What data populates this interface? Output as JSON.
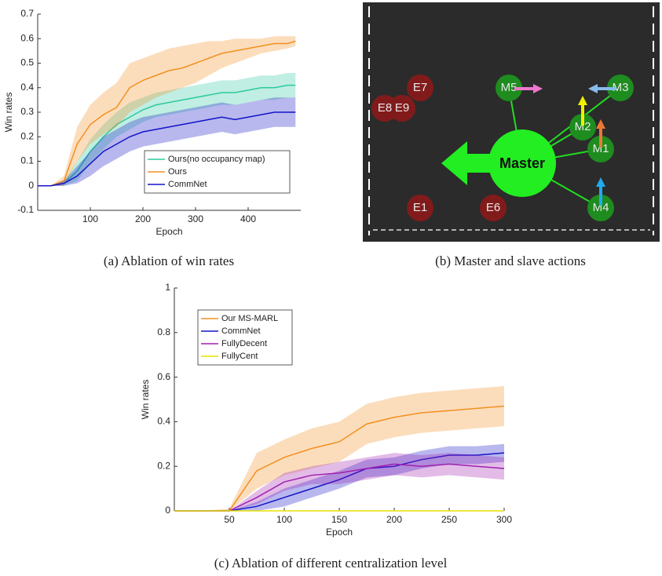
{
  "chart_data": [
    {
      "type": "line",
      "caption": "(a) Ablation of win rates",
      "x_label": "Epoch",
      "y_label": "Win rates",
      "x": [
        0,
        25,
        50,
        75,
        100,
        125,
        150,
        175,
        200,
        225,
        250,
        275,
        300,
        325,
        350,
        375,
        400,
        425,
        450,
        475,
        490
      ],
      "xlim": [
        0,
        500
      ],
      "xticks": [
        100,
        200,
        300,
        400
      ],
      "ylim": [
        -0.1,
        0.7
      ],
      "yticks": [
        -0.1,
        0,
        0.1,
        0.2,
        0.3,
        0.4,
        0.5,
        0.6,
        0.7
      ],
      "legend": "lower right",
      "series": [
        {
          "name": "Ours(no occupancy map)",
          "color": "#2ec8a0",
          "values": [
            0,
            0,
            0.01,
            0.06,
            0.14,
            0.2,
            0.25,
            0.28,
            0.31,
            0.33,
            0.34,
            0.35,
            0.36,
            0.37,
            0.38,
            0.38,
            0.39,
            0.4,
            0.4,
            0.41,
            0.41
          ],
          "upper": [
            0,
            0,
            0.02,
            0.1,
            0.19,
            0.25,
            0.3,
            0.34,
            0.36,
            0.38,
            0.39,
            0.4,
            0.41,
            0.42,
            0.43,
            0.43,
            0.44,
            0.45,
            0.45,
            0.46,
            0.46
          ],
          "lower": [
            0,
            0,
            0,
            0.02,
            0.09,
            0.15,
            0.2,
            0.23,
            0.26,
            0.28,
            0.29,
            0.3,
            0.31,
            0.32,
            0.33,
            0.33,
            0.34,
            0.35,
            0.35,
            0.36,
            0.36
          ]
        },
        {
          "name": "Ours",
          "color": "#f39020",
          "values": [
            0,
            0,
            0.02,
            0.17,
            0.25,
            0.29,
            0.32,
            0.4,
            0.43,
            0.45,
            0.47,
            0.48,
            0.5,
            0.52,
            0.54,
            0.55,
            0.56,
            0.57,
            0.58,
            0.58,
            0.59
          ],
          "upper": [
            0,
            0,
            0.04,
            0.24,
            0.33,
            0.38,
            0.42,
            0.5,
            0.52,
            0.54,
            0.56,
            0.57,
            0.58,
            0.59,
            0.59,
            0.6,
            0.6,
            0.6,
            0.61,
            0.61,
            0.61
          ],
          "lower": [
            0,
            0,
            0,
            0.1,
            0.17,
            0.21,
            0.24,
            0.3,
            0.33,
            0.36,
            0.38,
            0.4,
            0.42,
            0.45,
            0.48,
            0.5,
            0.52,
            0.54,
            0.55,
            0.56,
            0.57
          ]
        },
        {
          "name": "CommNet",
          "color": "#1414c8",
          "values": [
            0,
            0,
            0.01,
            0.04,
            0.09,
            0.14,
            0.17,
            0.2,
            0.22,
            0.23,
            0.24,
            0.25,
            0.26,
            0.27,
            0.28,
            0.27,
            0.28,
            0.29,
            0.3,
            0.3,
            0.3
          ],
          "upper": [
            0,
            0,
            0.02,
            0.08,
            0.14,
            0.2,
            0.23,
            0.26,
            0.28,
            0.29,
            0.3,
            0.31,
            0.32,
            0.33,
            0.34,
            0.33,
            0.34,
            0.35,
            0.36,
            0.36,
            0.36
          ],
          "lower": [
            0,
            0,
            0,
            0.01,
            0.04,
            0.08,
            0.11,
            0.14,
            0.16,
            0.17,
            0.18,
            0.19,
            0.2,
            0.21,
            0.22,
            0.21,
            0.22,
            0.23,
            0.24,
            0.24,
            0.24
          ]
        }
      ]
    },
    {
      "type": "line",
      "caption": "(c) Ablation of different centralization level",
      "x_label": "Epoch",
      "y_label": "Win rates",
      "x": [
        0,
        25,
        50,
        75,
        100,
        125,
        150,
        175,
        200,
        225,
        250,
        275,
        300
      ],
      "xlim": [
        0,
        300
      ],
      "xticks": [
        50,
        100,
        150,
        200,
        250,
        300
      ],
      "ylim": [
        0,
        1
      ],
      "yticks": [
        0,
        0.2,
        0.4,
        0.6,
        0.8,
        1
      ],
      "legend": "upper left",
      "series": [
        {
          "name": "Our MS-MARL",
          "color": "#f39020",
          "values": [
            0,
            0,
            0,
            0.18,
            0.24,
            0.28,
            0.31,
            0.39,
            0.42,
            0.44,
            0.45,
            0.46,
            0.47
          ],
          "upper": [
            0,
            0,
            0.01,
            0.26,
            0.32,
            0.37,
            0.4,
            0.48,
            0.51,
            0.53,
            0.54,
            0.55,
            0.56
          ],
          "lower": [
            0,
            0,
            0,
            0.1,
            0.16,
            0.19,
            0.22,
            0.3,
            0.33,
            0.35,
            0.36,
            0.37,
            0.38
          ]
        },
        {
          "name": "CommNet",
          "color": "#1414c8",
          "values": [
            0,
            0,
            0,
            0.02,
            0.06,
            0.1,
            0.14,
            0.19,
            0.2,
            0.23,
            0.25,
            0.25,
            0.26
          ],
          "upper": [
            0,
            0,
            0,
            0.04,
            0.1,
            0.14,
            0.18,
            0.23,
            0.24,
            0.27,
            0.29,
            0.29,
            0.3
          ],
          "lower": [
            0,
            0,
            0,
            0,
            0.02,
            0.06,
            0.1,
            0.15,
            0.16,
            0.19,
            0.21,
            0.21,
            0.22
          ]
        },
        {
          "name": "FullyDecent",
          "color": "#a020b0",
          "values": [
            0,
            0,
            0,
            0.06,
            0.13,
            0.16,
            0.17,
            0.19,
            0.21,
            0.2,
            0.21,
            0.2,
            0.19
          ],
          "upper": [
            0,
            0,
            0,
            0.09,
            0.17,
            0.2,
            0.22,
            0.24,
            0.26,
            0.25,
            0.26,
            0.25,
            0.24
          ],
          "lower": [
            0,
            0,
            0,
            0.03,
            0.09,
            0.12,
            0.12,
            0.14,
            0.16,
            0.15,
            0.16,
            0.15,
            0.14
          ]
        },
        {
          "name": "FullyCent",
          "color": "#e8e000",
          "values": [
            0,
            0,
            0,
            0,
            0,
            0,
            0,
            0,
            0,
            0,
            0,
            0,
            0
          ]
        }
      ]
    }
  ],
  "diagram": {
    "caption": "(b) Master and slave actions",
    "master": "Master",
    "nodes": [
      {
        "label": "E7"
      },
      {
        "label": "E8"
      },
      {
        "label": "E9"
      },
      {
        "label": "E1"
      },
      {
        "label": "E6"
      },
      {
        "label": "M5"
      },
      {
        "label": "M3"
      },
      {
        "label": "M2"
      },
      {
        "label": "M1"
      },
      {
        "label": "M4"
      }
    ]
  }
}
